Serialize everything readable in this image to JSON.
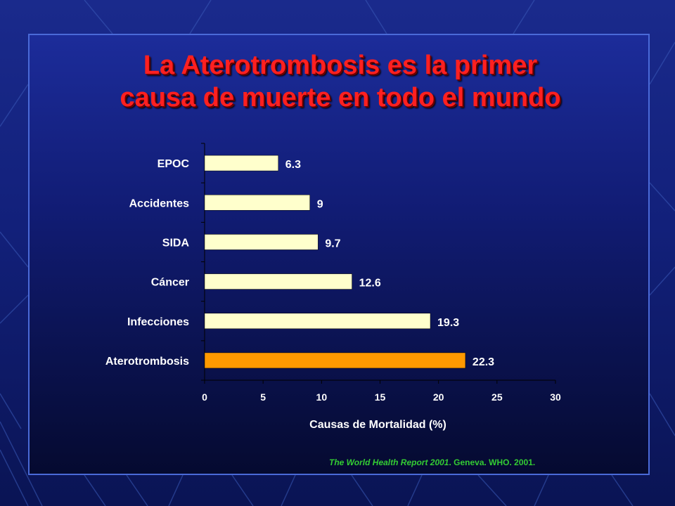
{
  "slide": {
    "title_line1": "La Aterotrombosis es la primer",
    "title_line2": "causa de muerte en todo el mundo",
    "footnote_italic": "The World Health Report 2001",
    "footnote_rest": ". Geneva. WHO. 2001."
  },
  "colors": {
    "title": "#ff2020",
    "bar_default": "#ffffcc",
    "bar_highlight": "#ff9900",
    "footnote": "#33cc33",
    "text": "#ffffff"
  },
  "chart_data": {
    "type": "bar",
    "orientation": "horizontal",
    "categories": [
      "Aterotrombosis",
      "Infecciones",
      "Cáncer",
      "SIDA",
      "Accidentes",
      "EPOC"
    ],
    "values": [
      22.3,
      19.3,
      12.6,
      9.7,
      9,
      6.3
    ],
    "value_labels": [
      "22.3",
      "19.3",
      "12.6",
      "9.7",
      "9",
      "6.3"
    ],
    "highlight_category": "Aterotrombosis",
    "xlabel": "Causas de Mortalidad (%)",
    "ylabel": "",
    "xlim": [
      0,
      30
    ],
    "xticks": [
      0,
      5,
      10,
      15,
      20,
      25,
      30
    ],
    "grid": false,
    "legend": "none"
  }
}
